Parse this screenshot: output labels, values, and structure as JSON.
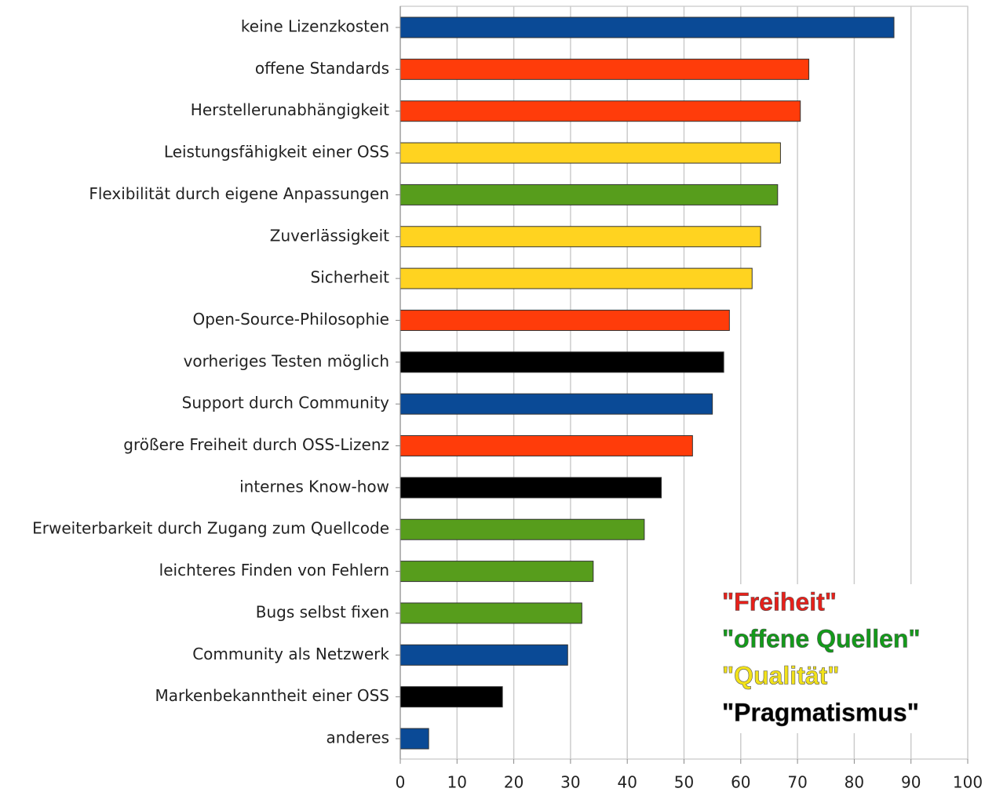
{
  "chart_data": {
    "type": "hbar",
    "categories": [
      "keine Lizenzkosten",
      "offene Standards",
      "Herstellerunabhängigkeit",
      "Leistungsfähigkeit einer OSS",
      "Flexibilität durch eigene Anpassungen",
      "Zuverlässigkeit",
      "Sicherheit",
      "Open-Source-Philosophie",
      "vorheriges Testen möglich",
      "Support durch Community",
      "größere Freiheit durch OSS-Lizenz",
      "internes Know-how",
      "Erweiterbarkeit durch Zugang zum Quellcode",
      "leichteres Finden von Fehlern",
      "Bugs selbst fixen",
      "Community als Netzwerk",
      "Markenbekanntheit einer OSS",
      "anderes"
    ],
    "values": [
      87,
      72,
      70.5,
      67,
      66.5,
      63.5,
      62,
      58,
      57,
      55,
      51.5,
      46,
      43,
      34,
      32,
      29.5,
      18,
      5
    ],
    "colors": [
      "#0a4a96",
      "#ff3c0a",
      "#ff3c0a",
      "#ffd320",
      "#579d1c",
      "#ffd320",
      "#ffd320",
      "#ff3c0a",
      "#000000",
      "#0a4a96",
      "#ff3c0a",
      "#000000",
      "#579d1c",
      "#579d1c",
      "#579d1c",
      "#0a4a96",
      "#000000",
      "#0a4a96"
    ],
    "xlim": [
      0,
      100
    ],
    "xticks": [
      0,
      10,
      20,
      30,
      40,
      50,
      60,
      70,
      80,
      90,
      100
    ],
    "grid": true,
    "annotations": [
      {
        "text": "\"Freiheit\"",
        "color": "#e8201a"
      },
      {
        "text": "\"offene Quellen\"",
        "color": "#139b1a"
      },
      {
        "text": "\"Qualität\"",
        "color": "#f2e21a"
      },
      {
        "text": "\"Pragmatismus\"",
        "color": "#000000"
      }
    ]
  }
}
